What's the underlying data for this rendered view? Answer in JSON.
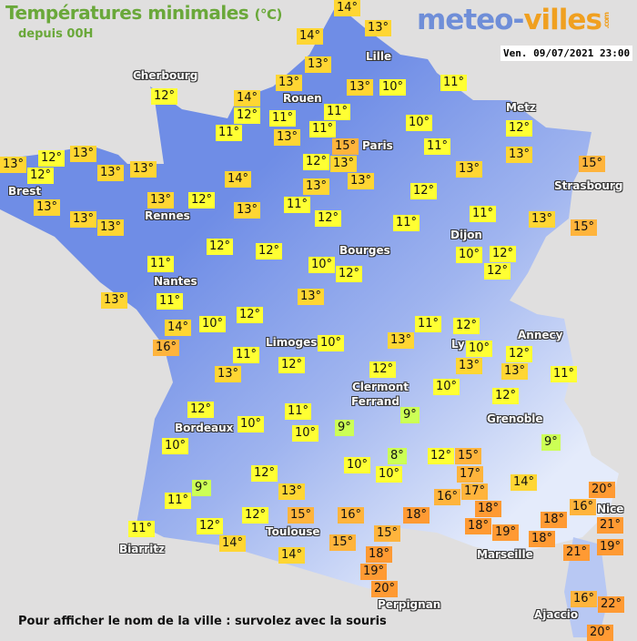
{
  "header": {
    "title": "Températures minimales",
    "unit": "(°C)",
    "subtitle": "depuis 00H",
    "logo": "meteo-villes.com",
    "datetime": "Ven. 09/07/2021 23:00"
  },
  "footer": "Pour afficher le nom de la ville : survolez avec la souris",
  "colors": {
    "land_dark": "#6f8de6",
    "land_light": "#e4ebfb",
    "sea": "#e0dfdf",
    "cold": "#ccff55",
    "mild": "#ffff33",
    "warm": "#ffd633",
    "hot": "#ffb43c",
    "very_hot": "#ff9a33"
  },
  "cities": [
    "Lille",
    "Cherbourg",
    "Rouen",
    "Paris",
    "Metz",
    "Strasbourg",
    "Brest",
    "Rennes",
    "Dijon",
    "Bourges",
    "Nantes",
    "Annecy",
    "Limoges",
    "Ly",
    "Clermont",
    "Ferrand",
    "Grenoble",
    "Bordeaux",
    "Toulouse",
    "Biarritz",
    "Marseille",
    "Nice",
    "Perpignan",
    "Ajaccio"
  ],
  "temperatures": [
    14,
    13,
    14,
    13,
    13,
    12,
    14,
    12,
    11,
    13,
    11,
    13,
    10,
    11,
    11,
    11,
    15,
    12,
    13,
    13,
    10,
    11,
    13,
    12,
    13,
    15,
    12,
    11,
    11,
    13,
    15,
    13,
    12,
    12,
    13,
    13,
    13,
    14,
    13,
    13,
    13,
    13,
    12,
    13,
    11,
    13,
    12,
    12,
    12,
    10,
    12,
    10,
    12,
    12,
    11,
    11,
    13,
    13,
    12,
    10,
    14,
    16,
    11,
    12,
    13,
    10,
    11,
    13,
    12,
    10,
    13,
    12,
    13,
    11,
    12,
    10,
    12,
    11,
    12,
    10,
    10,
    9,
    9,
    9,
    10,
    8,
    10,
    10,
    12,
    15,
    17,
    17,
    16,
    14,
    12,
    9,
    11,
    13,
    12,
    15,
    16,
    18,
    18,
    18,
    19,
    18,
    20,
    16,
    21,
    12,
    14,
    11,
    15,
    15,
    18,
    21,
    19,
    14,
    18,
    19,
    20,
    16,
    22,
    20
  ]
}
